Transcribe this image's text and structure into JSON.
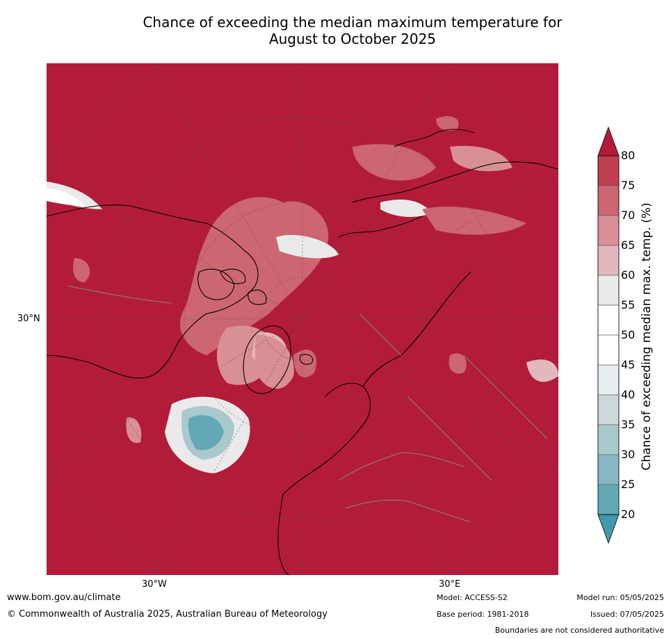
{
  "title": "Chance of exceeding the median maximum temperature for\nAugust to October 2025",
  "map": {
    "projection": "north-polar",
    "background_color": "#b21c38",
    "lat_label": "30°N",
    "lon_labels": [
      "30°W",
      "30°E"
    ]
  },
  "colorbar": {
    "label": "Chance of exceeding median max. temp. (%)",
    "ticks": [
      "80",
      "75",
      "70",
      "65",
      "60",
      "55",
      "50",
      "45",
      "40",
      "35",
      "30",
      "25",
      "20"
    ],
    "colors": [
      "#b21c38",
      "#c13e4f",
      "#cc6670",
      "#d88f96",
      "#e2b8bc",
      "#ebeaea",
      "#ffffff",
      "#ffffff",
      "#e8edf0",
      "#cdd7da",
      "#a9c9cf",
      "#87b7c2",
      "#63a8b5",
      "#3f9aab"
    ],
    "extend": "both"
  },
  "footer": {
    "website": "www.bom.gov.au/climate",
    "copyright": "© Commonwealth of Australia 2025, Australian Bureau of Meteorology",
    "model": "Model: ACCESS-S2",
    "base_period": "Base period: 1981-2018",
    "model_run": "Model run: 05/05/2025",
    "issued": "Issued: 07/05/2025",
    "disclaimer": "Boundaries are not considered authoritative"
  }
}
